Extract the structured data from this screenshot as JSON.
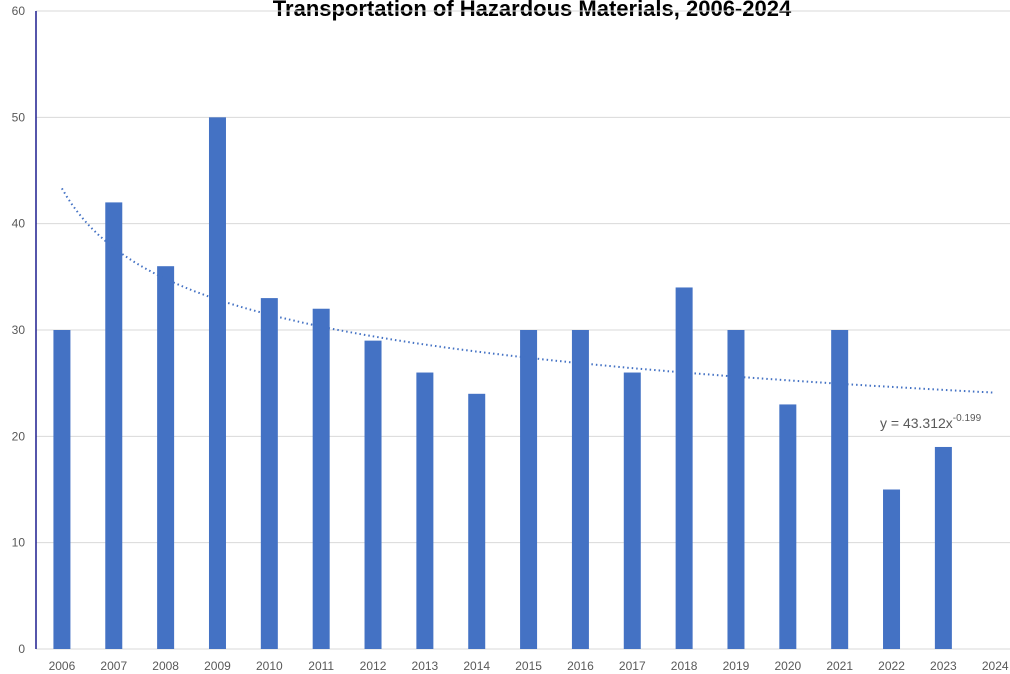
{
  "chart_data": {
    "type": "bar",
    "title": "Transportation of Hazardous Materials, 2006-2024",
    "categories": [
      "2006",
      "2007",
      "2008",
      "2009",
      "2010",
      "2011",
      "2012",
      "2013",
      "2014",
      "2015",
      "2016",
      "2017",
      "2018",
      "2019",
      "2020",
      "2021",
      "2022",
      "2023",
      "2024"
    ],
    "values": [
      30,
      42,
      36,
      50,
      33,
      32,
      29,
      26,
      24,
      30,
      30,
      26,
      34,
      30,
      23,
      30,
      15,
      19,
      null
    ],
    "color": "#4472c4",
    "ylim": [
      0,
      60
    ],
    "yticks": [
      0,
      10,
      20,
      30,
      40,
      50,
      60
    ],
    "grid": true,
    "trendline": {
      "type": "power",
      "coefficient": 43.312,
      "exponent": -0.199,
      "label": "y = 43.312x",
      "label_exponent": "-0.199"
    }
  }
}
